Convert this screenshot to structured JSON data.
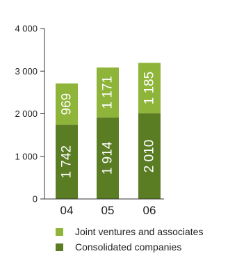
{
  "chart_data": {
    "type": "bar",
    "stacked": true,
    "categories": [
      "04",
      "05",
      "06"
    ],
    "series": [
      {
        "name": "Consolidated companies",
        "values": [
          1742,
          1914,
          2010
        ],
        "labels": [
          "1 742",
          "1 914",
          "2 010"
        ],
        "color": "#5a7d24"
      },
      {
        "name": "Joint ventures and associates",
        "values": [
          969,
          1171,
          1185
        ],
        "labels": [
          "969",
          "1 171",
          "1 185"
        ],
        "color": "#8fb43a"
      }
    ],
    "ylim": [
      0,
      4000
    ],
    "yticks": [
      0,
      1000,
      2000,
      3000,
      4000
    ],
    "ytick_labels": [
      "0",
      "1 000",
      "2 000",
      "3 000",
      "4 000"
    ],
    "legend_placement": "bottom",
    "legend_order": [
      1,
      0
    ],
    "grid": false
  }
}
